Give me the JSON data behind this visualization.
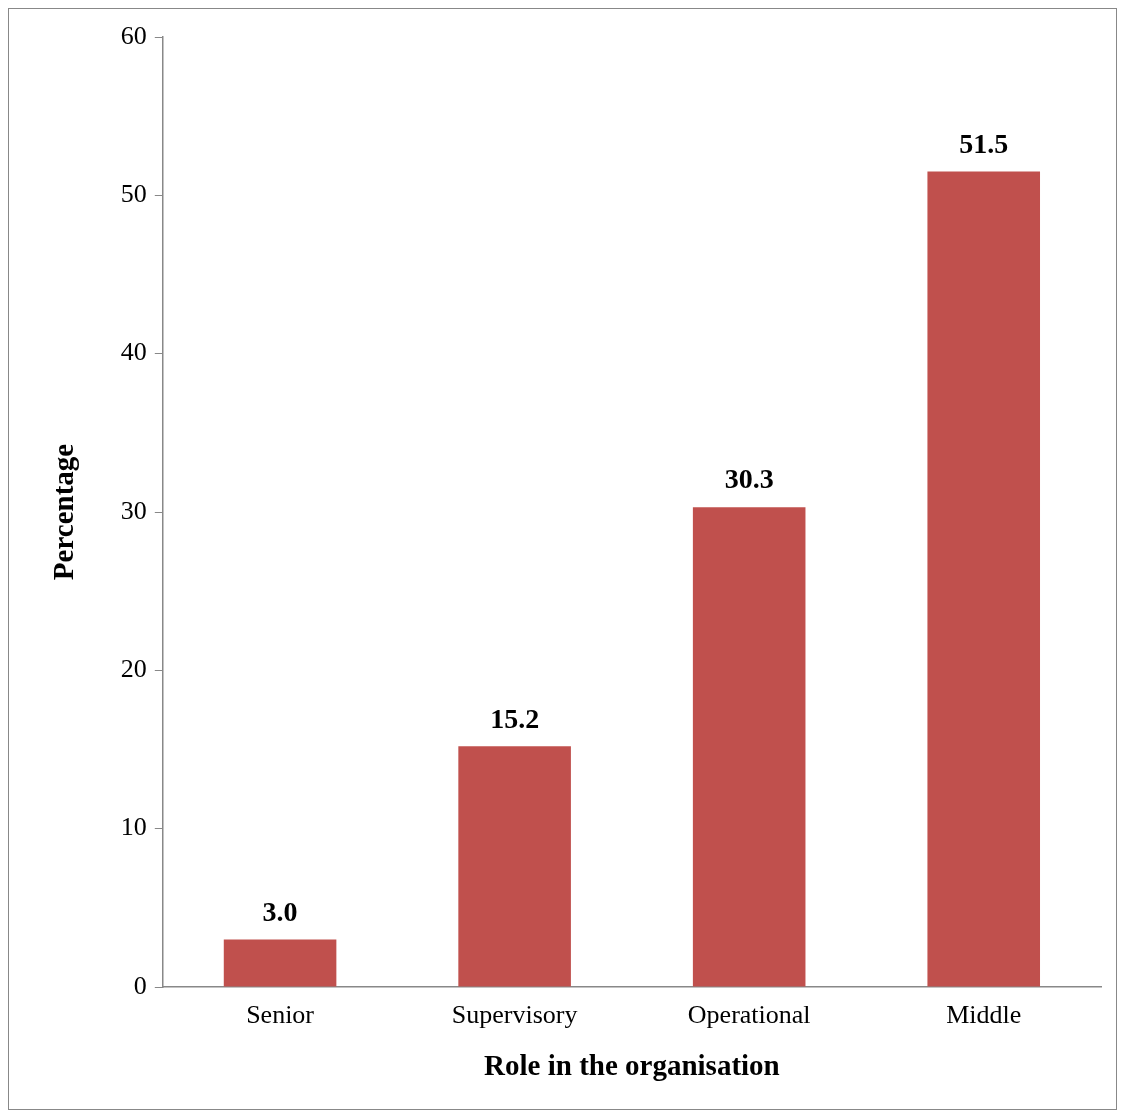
{
  "chart_data": {
    "type": "bar",
    "xlabel": "Role in the organisation",
    "ylabel": "Percentage",
    "categories": [
      "Senior",
      "Supervisory",
      "Operational",
      "Middle"
    ],
    "values": [
      3.0,
      15.2,
      30.3,
      51.5
    ],
    "value_labels": [
      "3.0",
      "15.2",
      "30.3",
      "51.5"
    ],
    "color": "#c0504d",
    "ylim": [
      0,
      60
    ],
    "yticks": [
      0,
      10,
      20,
      30,
      40,
      50,
      60
    ],
    "grid": false,
    "legend": false
  }
}
